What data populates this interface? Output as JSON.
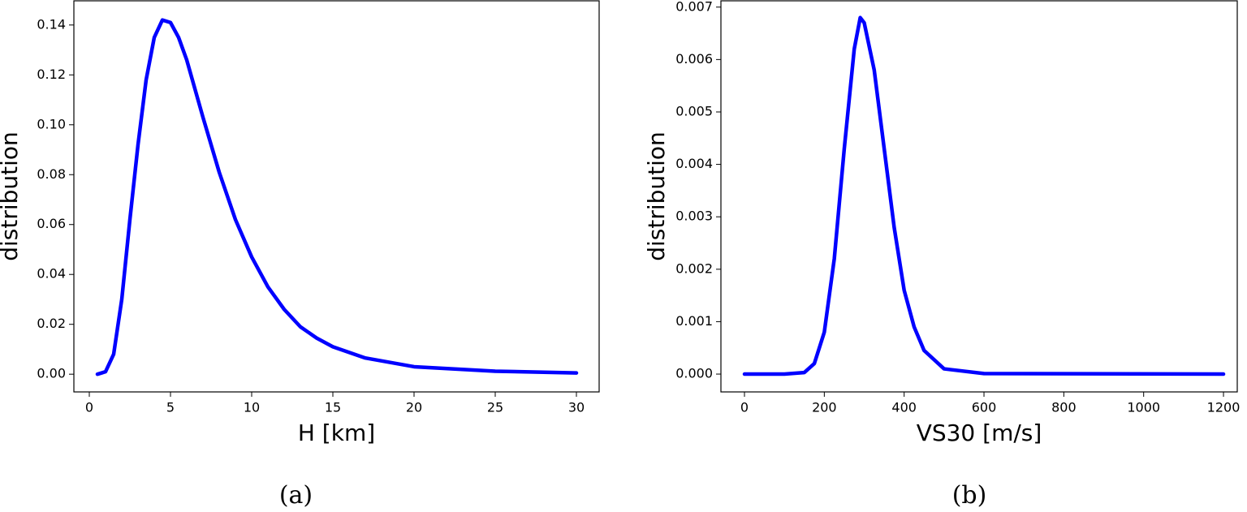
{
  "chart_data": [
    {
      "type": "line",
      "caption": "(a)",
      "xlabel": "H [km]",
      "ylabel": "distribution",
      "x": [
        0.5,
        1,
        1.5,
        2,
        2.5,
        3,
        3.5,
        4,
        4.5,
        5,
        5.5,
        6,
        7,
        8,
        9,
        10,
        11,
        12,
        13,
        14,
        15,
        17,
        20,
        25,
        30
      ],
      "series": [
        {
          "name": "distribution",
          "color": "#0000ff",
          "values": [
            0,
            0.001,
            0.008,
            0.03,
            0.062,
            0.092,
            0.118,
            0.135,
            0.142,
            0.141,
            0.135,
            0.126,
            0.103,
            0.081,
            0.062,
            0.047,
            0.035,
            0.026,
            0.019,
            0.0145,
            0.011,
            0.0065,
            0.003,
            0.0012,
            0.0005
          ]
        }
      ],
      "xlim": [
        -0.95,
        31.4
      ],
      "ylim": [
        -0.0071,
        0.1497
      ],
      "xticks": [
        0,
        5,
        10,
        15,
        20,
        25,
        30
      ],
      "yticks": [
        {
          "value": 0,
          "label": "0.00"
        },
        {
          "value": 0.02,
          "label": "0.02"
        },
        {
          "value": 0.04,
          "label": "0.04"
        },
        {
          "value": 0.06,
          "label": "0.06"
        },
        {
          "value": 0.08,
          "label": "0.08"
        },
        {
          "value": 0.1,
          "label": "0.10"
        },
        {
          "value": 0.12,
          "label": "0.12"
        },
        {
          "value": 0.14,
          "label": "0.14"
        }
      ]
    },
    {
      "type": "line",
      "caption": "(b)",
      "xlabel": "VS30 [m/s]",
      "ylabel": "distribution",
      "x": [
        0,
        100,
        150,
        175,
        200,
        225,
        250,
        275,
        290,
        300,
        325,
        350,
        375,
        400,
        425,
        450,
        500,
        600,
        1200
      ],
      "series": [
        {
          "name": "distribution",
          "color": "#0000ff",
          "values": [
            0,
            0,
            3e-05,
            0.0002,
            0.0008,
            0.0022,
            0.0043,
            0.0062,
            0.0068,
            0.0067,
            0.0058,
            0.0043,
            0.0028,
            0.0016,
            0.0009,
            0.00045,
            0.0001,
            1e-05,
            0
          ]
        }
      ],
      "xlim": [
        -59,
        1234.5
      ],
      "ylim": [
        -0.00034,
        0.00712
      ],
      "xticks": [
        0,
        200,
        400,
        600,
        800,
        1000,
        1200
      ],
      "yticks": [
        {
          "value": 0,
          "label": "0.000"
        },
        {
          "value": 0.001,
          "label": "0.001"
        },
        {
          "value": 0.002,
          "label": "0.002"
        },
        {
          "value": 0.003,
          "label": "0.003"
        },
        {
          "value": 0.004,
          "label": "0.004"
        },
        {
          "value": 0.005,
          "label": "0.005"
        },
        {
          "value": 0.006,
          "label": "0.006"
        },
        {
          "value": 0.007,
          "label": "0.007"
        }
      ]
    }
  ]
}
